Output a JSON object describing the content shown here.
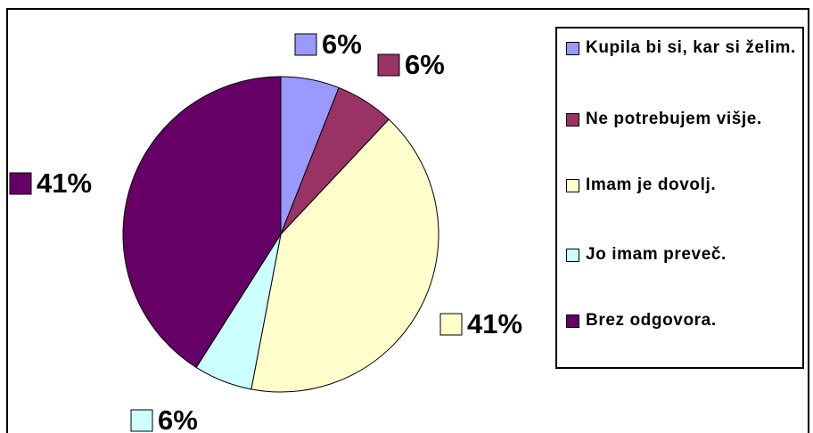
{
  "chart_data": {
    "type": "pie",
    "categories": [
      "Kupila bi si, kar si želim.",
      "Ne potrebujem višje.",
      "Imam je dovolj.",
      "Jo imam preveč.",
      "Brez odgovora."
    ],
    "values": [
      6,
      6,
      41,
      6,
      41
    ],
    "value_labels": [
      "6%",
      "6%",
      "41%",
      "6%",
      "41%"
    ],
    "colors": [
      "#9999ff",
      "#993366",
      "#ffffcc",
      "#ccffff",
      "#660066"
    ],
    "legend": "right"
  }
}
